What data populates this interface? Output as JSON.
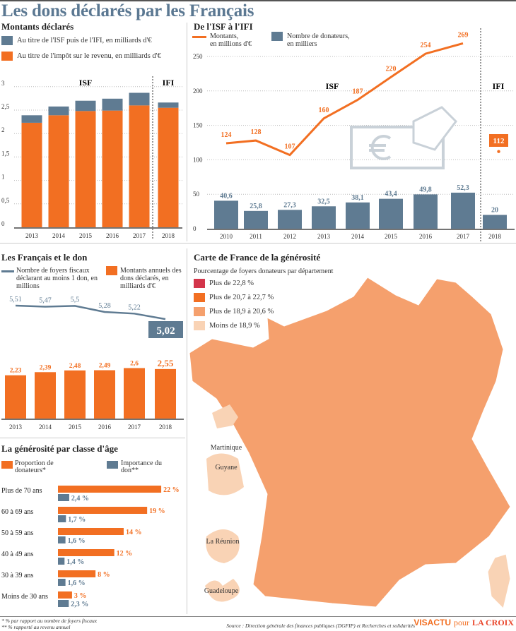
{
  "title": "Les dons déclarés par les Français",
  "colors": {
    "title": "#5b7892",
    "orange": "#f26f22",
    "slate": "#5f7b92",
    "red": "#d3354a",
    "light_orange": "#f5a06d",
    "pale": "#f9d3b5"
  },
  "montants": {
    "title": "Montants déclarés",
    "legend_isf": "Au titre de l'ISF puis de l'IFI, en milliards d'€",
    "legend_ir": "Au titre de l'impôt sur le revenu, en milliards d'€",
    "label_isf": "ISF",
    "label_ifi": "IFI"
  },
  "isf_ifi": {
    "title": "De l'ISF à l'IFI",
    "legend_line": "Montants,\nen millions d'€",
    "legend_bar": "Nombre de donateurs,\nen milliers",
    "label_isf": "ISF",
    "label_ifi": "IFI",
    "card_icon": "euro-card-icon"
  },
  "don": {
    "title": "Les Français et le don",
    "legend_line": "Nombre de foyers fiscaux déclarant au moins 1 don, en millions",
    "legend_bar": "Montants annuels des dons déclarés, en milliards d'€"
  },
  "age": {
    "title": "La générosité par classe d'âge",
    "legend_orange": "Proportion de donateurs*",
    "legend_blue": "Importance du don**"
  },
  "map": {
    "title": "Carte de France de la générosité",
    "subtitle": "Pourcentage de foyers donateurs par département",
    "legend": [
      {
        "label": "Plus de 22,8 %",
        "color": "#d3354a"
      },
      {
        "label": "Plus de 20,7 à 22,7 %",
        "color": "#f26f22"
      },
      {
        "label": "Plus de 18,9 à 20,6 %",
        "color": "#f5a06d"
      },
      {
        "label": "Moins de 18,9 %",
        "color": "#f9d3b5"
      }
    ],
    "islands": [
      "Martinique",
      "Guyane",
      "La Réunion",
      "Guadeloupe"
    ]
  },
  "footer": {
    "note1": "* % par rapport au nombre de foyers fiscaux",
    "note2": "** % rapporté au revenu annuel",
    "source": "Source : Direction générale des finances publiques (DGFIP) et Recherches et solidarités",
    "brand1": "VISACTU",
    "brand_pour": "pour",
    "brand2": "LA CROIX"
  },
  "chart_data": [
    {
      "type": "bar",
      "stacked": true,
      "title": "Montants déclarés",
      "categories": [
        "2013",
        "2014",
        "2015",
        "2016",
        "2017",
        "2018"
      ],
      "series": [
        {
          "name": "Au titre de l'impôt sur le revenu, en milliards d'€",
          "color": "#f26f22",
          "values": [
            2.23,
            2.39,
            2.48,
            2.49,
            2.6,
            2.55
          ]
        },
        {
          "name": "Au titre de l'ISF puis de l'IFI, en milliards d'€",
          "color": "#5f7b92",
          "values": [
            0.16,
            0.187,
            0.22,
            0.254,
            0.269,
            0.112
          ]
        }
      ],
      "yticks": [
        "0",
        "0,5",
        "1",
        "1,5",
        "2",
        "2,5",
        "3"
      ],
      "ylim": [
        0,
        3
      ],
      "grid": true
    },
    {
      "type": "line+bar",
      "title": "De l'ISF à l'IFI",
      "categories": [
        "2010",
        "2011",
        "2012",
        "2013",
        "2014",
        "2015",
        "2016",
        "2017",
        "2018"
      ],
      "line": {
        "name": "Montants, en millions d'€",
        "values": [
          124,
          128,
          107,
          160,
          187,
          220,
          254,
          269,
          112
        ]
      },
      "bars": {
        "name": "Nombre de donateurs, en milliers",
        "values": [
          40.6,
          25.8,
          27.3,
          32.5,
          38.1,
          43.4,
          49.8,
          52.3,
          20
        ]
      },
      "yticks": [
        "0",
        "50",
        "100",
        "150",
        "200",
        "250"
      ],
      "ylim": [
        0,
        250
      ],
      "grid": true
    },
    {
      "type": "line+bar",
      "title": "Les Français et le don",
      "categories": [
        "2013",
        "2014",
        "2015",
        "2016",
        "2017",
        "2018"
      ],
      "line": {
        "name": "Nombre de foyers fiscaux déclarant au moins 1 don, en millions",
        "values": [
          5.51,
          5.47,
          5.5,
          5.28,
          5.22,
          5.02
        ]
      },
      "bars": {
        "name": "Montants annuels des dons déclarés, en milliards d'€",
        "values": [
          2.23,
          2.39,
          2.48,
          2.49,
          2.6,
          2.55
        ]
      }
    },
    {
      "type": "bar",
      "orientation": "horizontal",
      "title": "La générosité par classe d'âge",
      "categories": [
        "Plus de 70 ans",
        "60 à 69 ans",
        "50 à 59 ans",
        "40 à 49 ans",
        "30 à 39 ans",
        "Moins de 30 ans"
      ],
      "series": [
        {
          "name": "Proportion de donateurs*",
          "unit": "%",
          "values": [
            22,
            19,
            14,
            12,
            8,
            3
          ]
        },
        {
          "name": "Importance du don**",
          "unit": "%",
          "values": [
            2.4,
            1.7,
            1.6,
            1.4,
            1.6,
            2.3
          ]
        }
      ]
    }
  ]
}
